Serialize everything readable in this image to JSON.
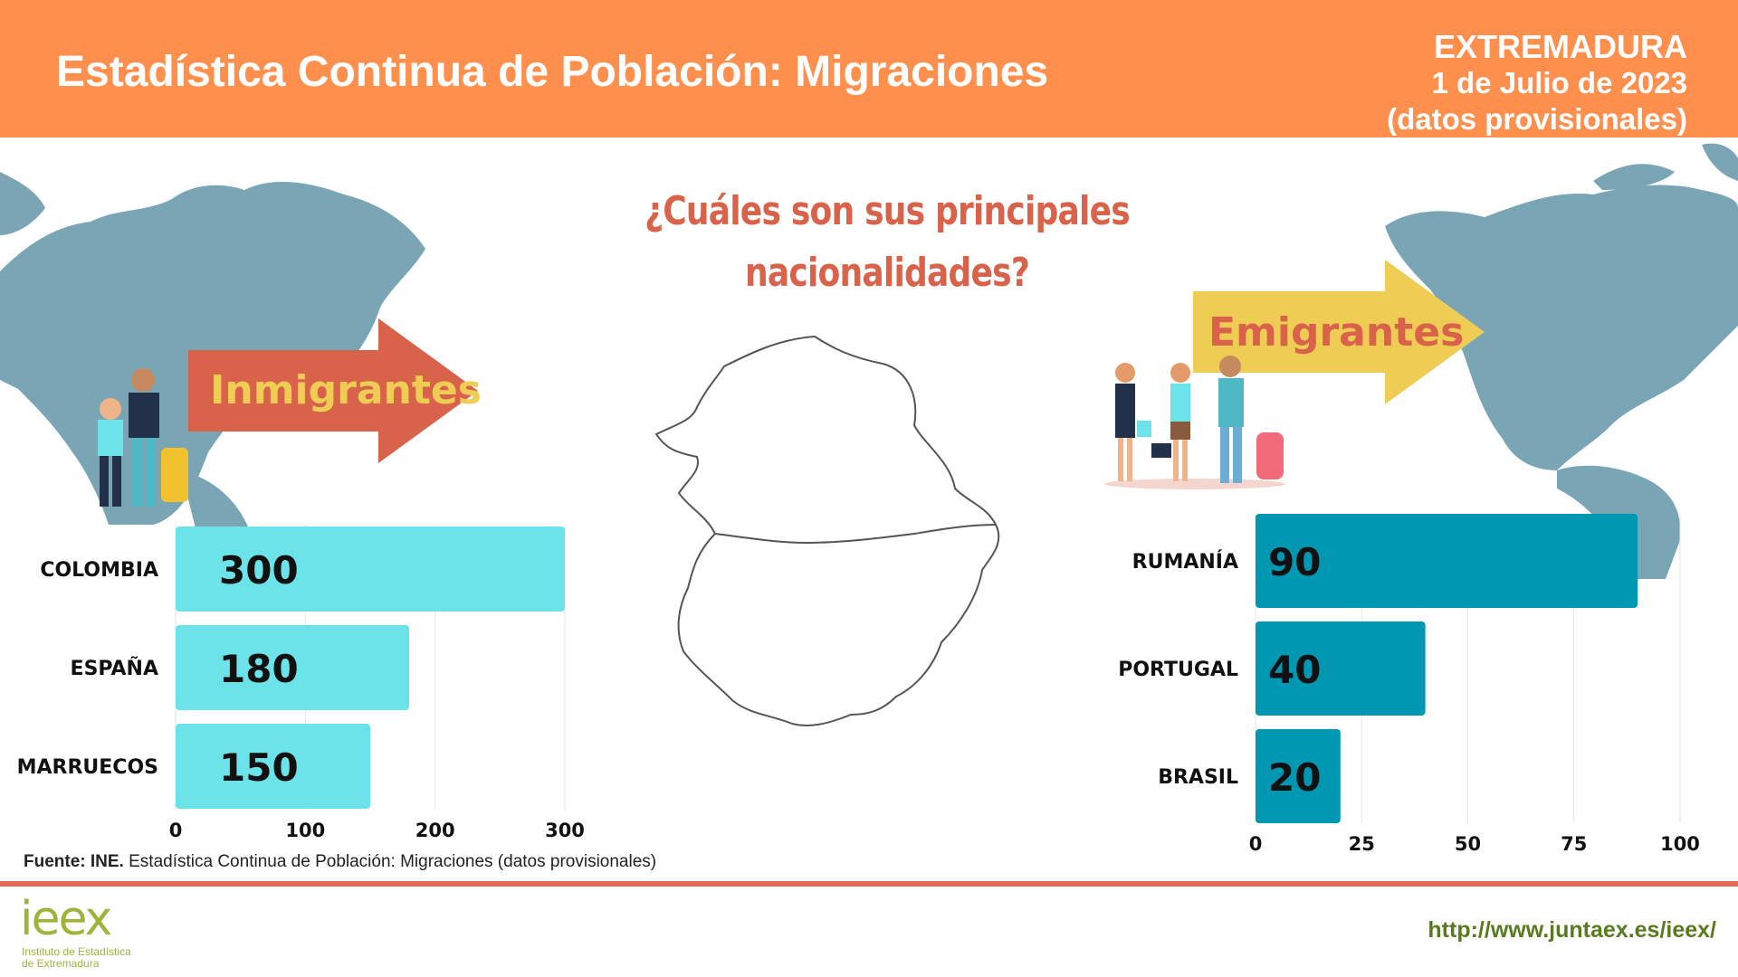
{
  "header": {
    "title": "Estadística Continua de Población:  Migraciones",
    "region": "EXTREMADURA",
    "date": "1 de Julio de 2023",
    "note": "(datos provisionales)"
  },
  "question": {
    "line1": "¿Cuáles son sus principales",
    "line2": "nacionalidades?"
  },
  "labels": {
    "immigrants": "Inmigrantes",
    "emigrants": "Emigrantes"
  },
  "colors": {
    "header": "#ff8f4d",
    "immigrant_bar": "#6be3e8",
    "emigrant_bar": "#0097b2",
    "immigrant_arrow": "#d9624a",
    "emigrant_arrow": "#efcd55",
    "map": "#7aa5b5"
  },
  "chart_data": [
    {
      "type": "bar",
      "orientation": "horizontal",
      "categories": [
        "COLOMBIA",
        "ESPAÑA",
        "MARRUECOS"
      ],
      "values": [
        300,
        180,
        150
      ],
      "xlim": [
        0,
        300
      ],
      "ticks": [
        0,
        100,
        200,
        300
      ],
      "grid": true
    },
    {
      "type": "bar",
      "orientation": "horizontal",
      "categories": [
        "RUMANÍA",
        "PORTUGAL",
        "BRASIL"
      ],
      "values": [
        90,
        40,
        20
      ],
      "xlim": [
        0,
        100
      ],
      "ticks": [
        0,
        25,
        50,
        75,
        100
      ],
      "grid": true
    }
  ],
  "footer": {
    "source_bold": "Fuente: INE.",
    "source_rest": " Estadística Continua de Población: Migraciones (datos provisionales)",
    "url": "http://www.juntaex.es/ieex/",
    "logo": "ieex",
    "logo_sub1": "Instituto de Estadística",
    "logo_sub2": "de Extremadura"
  }
}
